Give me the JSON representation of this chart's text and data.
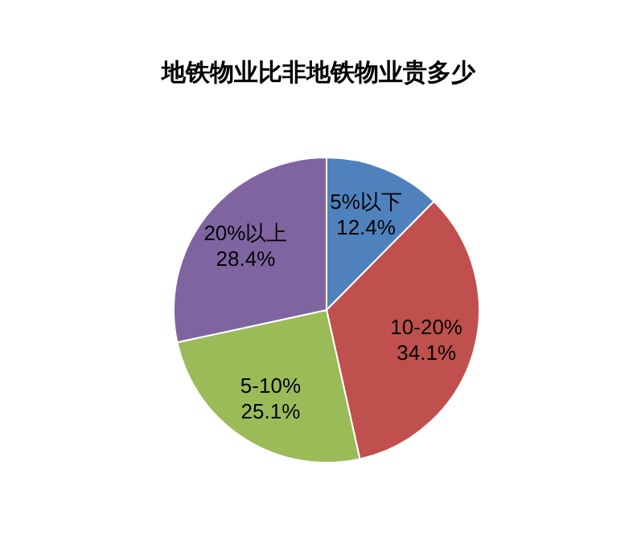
{
  "chart_data": {
    "type": "pie",
    "title": "地铁物业比非地铁物业贵多少",
    "categories": [
      "5%以下",
      "10-20%",
      "5-10%",
      "20%以上"
    ],
    "values": [
      12.4,
      34.1,
      25.1,
      28.4
    ],
    "colors": [
      "#4f81bd",
      "#c0504d",
      "#9bbb59",
      "#8064a2"
    ],
    "value_labels": [
      "12.4%",
      "34.1%",
      "25.1%",
      "28.4%"
    ]
  }
}
